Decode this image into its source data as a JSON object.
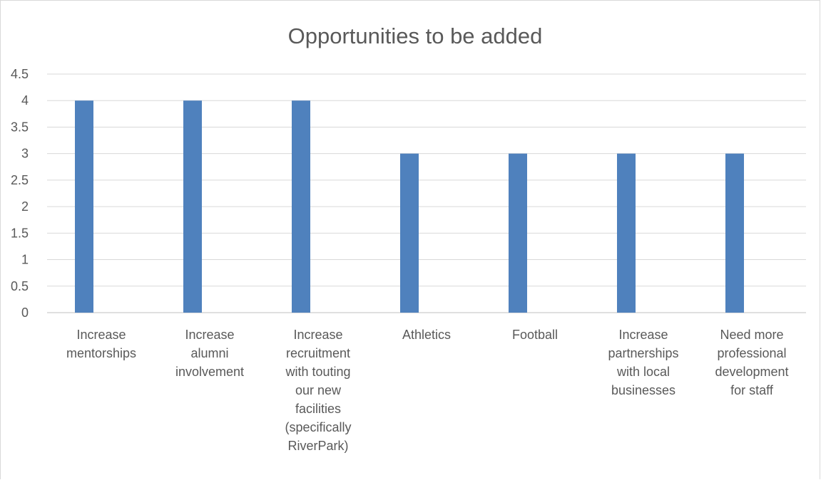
{
  "chart_data": {
    "type": "bar",
    "title": "Opportunities to be added",
    "xlabel": "",
    "ylabel": "",
    "ylim": [
      0,
      4.5
    ],
    "yticks": [
      "0",
      "0.5",
      "1",
      "1.5",
      "2",
      "2.5",
      "3",
      "3.5",
      "4",
      "4.5"
    ],
    "grid": true,
    "legend": "none",
    "bar_color": "#4f81bd",
    "categories": [
      [
        "Increase",
        "mentorships"
      ],
      [
        "Increase",
        "alumni",
        "involvement"
      ],
      [
        "Increase",
        "recruitment",
        "with touting",
        "our new",
        "facilities",
        "(specifically",
        "RiverPark)"
      ],
      [
        "Athletics"
      ],
      [
        "Football"
      ],
      [
        "Increase",
        "partnerships",
        "with local",
        "businesses"
      ],
      [
        "Need more",
        "professional",
        "development",
        "for staff"
      ]
    ],
    "values": [
      4,
      4,
      4,
      3,
      3,
      3,
      3
    ]
  }
}
